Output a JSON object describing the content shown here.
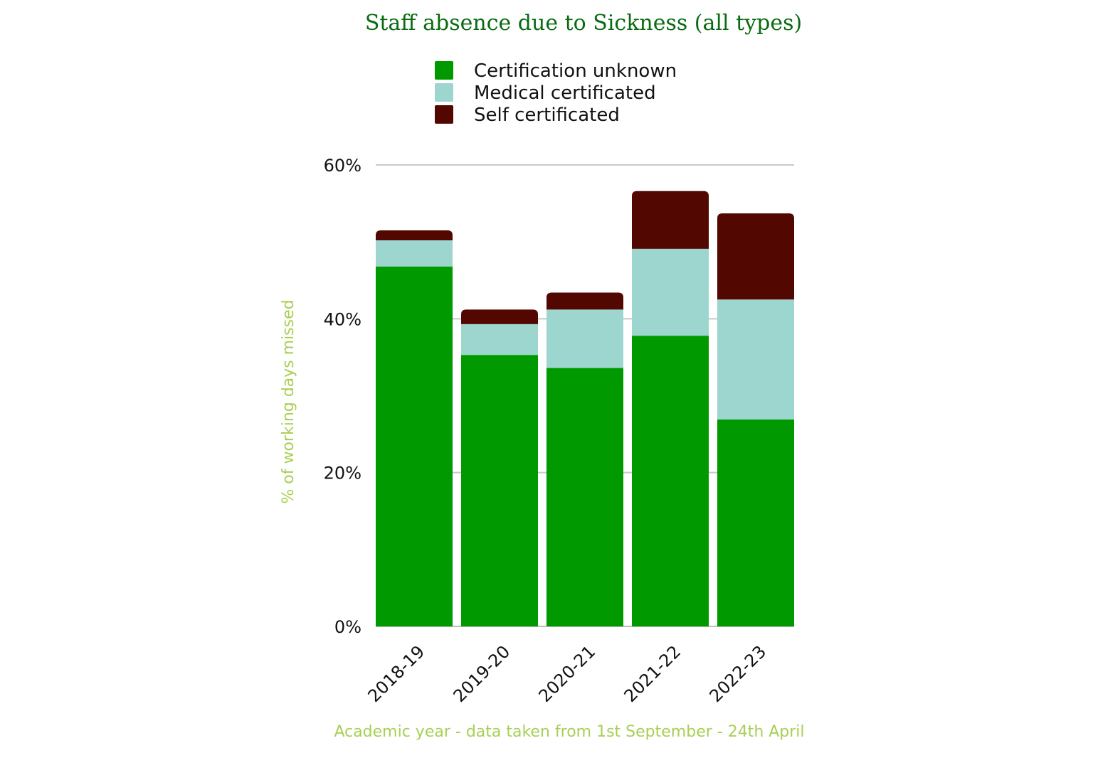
{
  "chart_data": {
    "type": "bar",
    "stacked": true,
    "title": "Staff absence due to Sickness (all types)",
    "xlabel": "Academic year - data taken from 1st September - 24th April",
    "ylabel": "% of working days missed",
    "categories": [
      "2018-19",
      "2019-20",
      "2020-21",
      "2021-22",
      "2022-23"
    ],
    "ylim": [
      0,
      60
    ],
    "yticks": [
      0,
      20,
      40,
      60
    ],
    "ytick_labels": [
      "0%",
      "20%",
      "40%",
      "60%"
    ],
    "grid": true,
    "legend_position": "top",
    "series": [
      {
        "name": "Certification unknown",
        "color": "#009900",
        "values": [
          46.8,
          35.3,
          33.6,
          37.8,
          26.9
        ]
      },
      {
        "name": "Medical certificated",
        "color": "#9cd6cf",
        "values": [
          3.4,
          4.0,
          7.6,
          11.3,
          15.6
        ]
      },
      {
        "name": "Self certificated",
        "color": "#520800",
        "values": [
          1.3,
          1.9,
          2.2,
          7.5,
          11.2
        ]
      }
    ]
  }
}
